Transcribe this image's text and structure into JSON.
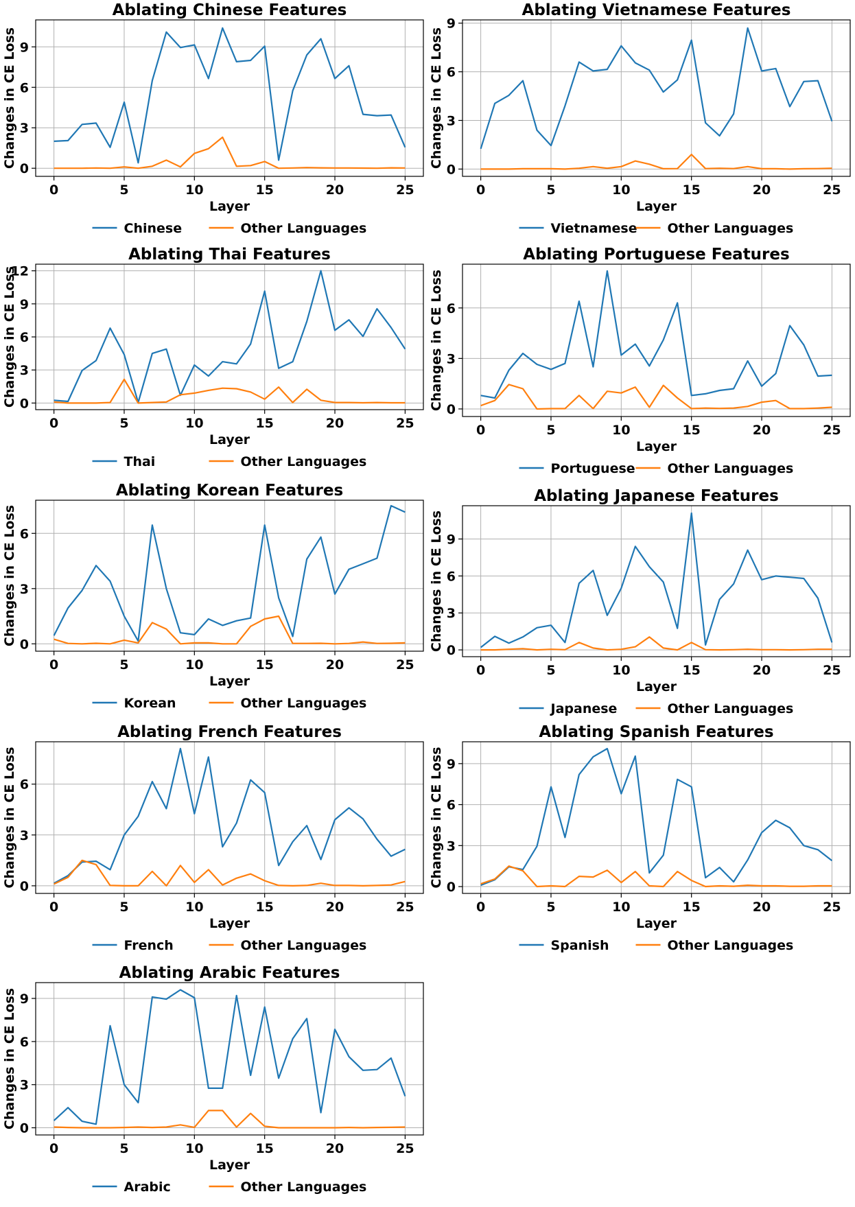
{
  "figure": {
    "common_xlabel": "Layer",
    "common_ylabel": "Changes in CE Loss"
  },
  "colors": {
    "primary": "#1f77b4",
    "other": "#ff7f0e",
    "grid": "#b0b0b0"
  },
  "chart_data": [
    {
      "type": "line",
      "title": "Ablating Chinese Features",
      "xlabel": "Layer",
      "ylabel": "Changes in CE Loss",
      "xlim": [
        -1.3,
        26.3
      ],
      "ylim": [
        -0.6,
        11.0
      ],
      "xticks": [
        0,
        5,
        10,
        15,
        20,
        25
      ],
      "yticks": [
        0,
        3,
        6,
        9
      ],
      "x": [
        0,
        1,
        2,
        3,
        4,
        5,
        6,
        7,
        8,
        9,
        10,
        11,
        12,
        13,
        14,
        15,
        16,
        17,
        18,
        19,
        20,
        21,
        22,
        23,
        24,
        25
      ],
      "series": [
        {
          "name": "Chinese",
          "values": [
            2.0,
            2.05,
            3.25,
            3.35,
            1.55,
            4.9,
            0.4,
            6.5,
            10.1,
            8.95,
            9.15,
            6.65,
            10.4,
            7.9,
            8.0,
            9.05,
            0.6,
            5.75,
            8.4,
            9.6,
            6.65,
            7.6,
            4.0,
            3.9,
            3.95,
            1.55
          ]
        },
        {
          "name": "Other Languages",
          "values": [
            0.0,
            0.0,
            0.0,
            0.02,
            0.0,
            0.1,
            0.0,
            0.15,
            0.6,
            0.1,
            1.1,
            1.45,
            2.3,
            0.15,
            0.2,
            0.5,
            0.0,
            0.02,
            0.05,
            0.03,
            0.02,
            0.02,
            0.01,
            0.0,
            0.03,
            0.02
          ]
        }
      ]
    },
    {
      "type": "line",
      "title": "Ablating Vietnamese Features",
      "xlabel": "Layer",
      "ylabel": "Changes in CE Loss",
      "xlim": [
        -1.3,
        26.3
      ],
      "ylim": [
        -0.45,
        9.2
      ],
      "xticks": [
        0,
        5,
        10,
        15,
        20,
        25
      ],
      "yticks": [
        0,
        3,
        6,
        9
      ],
      "x": [
        0,
        1,
        2,
        3,
        4,
        5,
        6,
        7,
        8,
        9,
        10,
        11,
        12,
        13,
        14,
        15,
        16,
        17,
        18,
        19,
        20,
        21,
        22,
        23,
        24,
        25
      ],
      "series": [
        {
          "name": "Vietnamese",
          "values": [
            1.25,
            4.05,
            4.55,
            5.45,
            2.4,
            1.45,
            3.9,
            6.6,
            6.05,
            6.15,
            7.6,
            6.55,
            6.1,
            4.75,
            5.5,
            7.95,
            2.85,
            2.05,
            3.4,
            8.7,
            6.05,
            6.2,
            3.85,
            5.4,
            5.45,
            2.95
          ]
        },
        {
          "name": "Other Languages",
          "values": [
            0.0,
            0.0,
            0.0,
            0.02,
            0.02,
            0.02,
            0.0,
            0.05,
            0.15,
            0.05,
            0.15,
            0.5,
            0.3,
            0.02,
            0.03,
            0.9,
            0.03,
            0.05,
            0.03,
            0.15,
            0.02,
            0.02,
            0.0,
            0.02,
            0.03,
            0.05
          ]
        }
      ]
    },
    {
      "type": "line",
      "title": "Ablating Thai Features",
      "xlabel": "Layer",
      "ylabel": "Changes in CE Loss",
      "xlim": [
        -1.3,
        26.3
      ],
      "ylim": [
        -0.6,
        12.6
      ],
      "xticks": [
        0,
        5,
        10,
        15,
        20,
        25
      ],
      "yticks": [
        0,
        3,
        6,
        9,
        12
      ],
      "x": [
        0,
        1,
        2,
        3,
        4,
        5,
        6,
        7,
        8,
        9,
        10,
        11,
        12,
        13,
        14,
        15,
        16,
        17,
        18,
        19,
        20,
        21,
        22,
        23,
        24,
        25
      ],
      "series": [
        {
          "name": "Thai",
          "values": [
            0.25,
            0.15,
            2.95,
            3.85,
            6.8,
            4.4,
            0.05,
            4.5,
            4.9,
            0.7,
            3.45,
            2.45,
            3.75,
            3.55,
            5.35,
            10.15,
            3.15,
            3.75,
            7.4,
            12.0,
            6.6,
            7.55,
            6.05,
            8.55,
            6.85,
            4.9
          ]
        },
        {
          "name": "Other Languages",
          "values": [
            0.1,
            0.0,
            0.0,
            0.0,
            0.05,
            2.15,
            0.0,
            0.05,
            0.1,
            0.75,
            0.9,
            1.15,
            1.35,
            1.3,
            1.0,
            0.35,
            1.45,
            0.05,
            1.25,
            0.25,
            0.05,
            0.05,
            0.02,
            0.05,
            0.02,
            0.02
          ]
        }
      ]
    },
    {
      "type": "line",
      "title": "Ablating Portuguese Features",
      "xlabel": "Layer",
      "ylabel": "Changes in CE Loss",
      "xlim": [
        -1.3,
        26.3
      ],
      "ylim": [
        -0.45,
        8.6
      ],
      "xticks": [
        0,
        5,
        10,
        15,
        20,
        25
      ],
      "yticks": [
        0,
        3,
        6
      ],
      "x": [
        0,
        1,
        2,
        3,
        4,
        5,
        6,
        7,
        8,
        9,
        10,
        11,
        12,
        13,
        14,
        15,
        16,
        17,
        18,
        19,
        20,
        21,
        22,
        23,
        24,
        25
      ],
      "series": [
        {
          "name": "Portuguese",
          "values": [
            0.8,
            0.65,
            2.3,
            3.3,
            2.65,
            2.35,
            2.7,
            6.4,
            2.5,
            8.2,
            3.2,
            3.85,
            2.55,
            4.1,
            6.3,
            0.8,
            0.9,
            1.1,
            1.2,
            2.85,
            1.35,
            2.1,
            4.95,
            3.8,
            1.95,
            2.0
          ]
        },
        {
          "name": "Other Languages",
          "values": [
            0.2,
            0.5,
            1.45,
            1.2,
            0.0,
            0.02,
            0.02,
            0.8,
            0.02,
            1.05,
            0.95,
            1.3,
            0.1,
            1.4,
            0.65,
            0.02,
            0.05,
            0.03,
            0.05,
            0.15,
            0.4,
            0.5,
            0.02,
            0.02,
            0.05,
            0.1
          ]
        }
      ]
    },
    {
      "type": "line",
      "title": "Ablating Korean Features",
      "xlabel": "Layer",
      "ylabel": "Changes in CE Loss",
      "xlim": [
        -1.3,
        26.3
      ],
      "ylim": [
        -0.4,
        7.8
      ],
      "xticks": [
        0,
        5,
        10,
        15,
        20,
        25
      ],
      "yticks": [
        0,
        3,
        6
      ],
      "x": [
        0,
        1,
        2,
        3,
        4,
        5,
        6,
        7,
        8,
        9,
        10,
        11,
        12,
        13,
        14,
        15,
        16,
        17,
        18,
        19,
        20,
        21,
        22,
        23,
        24,
        25
      ],
      "series": [
        {
          "name": "Korean",
          "values": [
            0.45,
            1.95,
            2.9,
            4.25,
            3.4,
            1.5,
            0.15,
            6.45,
            3.0,
            0.6,
            0.5,
            1.35,
            1.0,
            1.25,
            1.4,
            6.45,
            2.5,
            0.4,
            4.6,
            5.8,
            2.7,
            4.05,
            4.35,
            4.65,
            7.5,
            7.15
          ]
        },
        {
          "name": "Other Languages",
          "values": [
            0.25,
            0.02,
            0.0,
            0.03,
            0.0,
            0.2,
            0.05,
            1.15,
            0.8,
            0.0,
            0.05,
            0.05,
            0.0,
            0.0,
            0.95,
            1.35,
            1.5,
            0.02,
            0.02,
            0.03,
            0.0,
            0.02,
            0.1,
            0.02,
            0.03,
            0.05
          ]
        }
      ]
    },
    {
      "type": "line",
      "title": "Ablating Japanese Features",
      "xlabel": "Layer",
      "ylabel": "Changes in CE Loss",
      "xlim": [
        -1.3,
        26.3
      ],
      "ylim": [
        -0.55,
        11.7
      ],
      "xticks": [
        0,
        5,
        10,
        15,
        20,
        25
      ],
      "yticks": [
        0,
        3,
        6,
        9
      ],
      "x": [
        0,
        1,
        2,
        3,
        4,
        5,
        6,
        7,
        8,
        9,
        10,
        11,
        12,
        13,
        14,
        15,
        16,
        17,
        18,
        19,
        20,
        21,
        22,
        23,
        24,
        25
      ],
      "series": [
        {
          "name": "Japanese",
          "values": [
            0.2,
            1.1,
            0.55,
            1.05,
            1.8,
            2.0,
            0.6,
            5.4,
            6.45,
            2.8,
            5.0,
            8.4,
            6.75,
            5.5,
            1.75,
            11.1,
            0.4,
            4.1,
            5.35,
            8.1,
            5.7,
            6.0,
            5.9,
            5.8,
            4.2,
            0.6
          ]
        },
        {
          "name": "Other Languages",
          "values": [
            0.0,
            0.0,
            0.05,
            0.1,
            0.0,
            0.05,
            0.02,
            0.6,
            0.15,
            0.0,
            0.05,
            0.25,
            1.05,
            0.15,
            0.0,
            0.6,
            0.02,
            0.0,
            0.02,
            0.05,
            0.02,
            0.02,
            0.0,
            0.02,
            0.05,
            0.05
          ]
        }
      ]
    },
    {
      "type": "line",
      "title": "Ablating French Features",
      "xlabel": "Layer",
      "ylabel": "Changes in CE Loss",
      "xlim": [
        -1.3,
        26.3
      ],
      "ylim": [
        -0.45,
        8.5
      ],
      "xticks": [
        0,
        5,
        10,
        15,
        20,
        25
      ],
      "yticks": [
        0,
        3,
        6
      ],
      "x": [
        0,
        1,
        2,
        3,
        4,
        5,
        6,
        7,
        8,
        9,
        10,
        11,
        12,
        13,
        14,
        15,
        16,
        17,
        18,
        19,
        20,
        21,
        22,
        23,
        24,
        25
      ],
      "series": [
        {
          "name": "French",
          "values": [
            0.15,
            0.6,
            1.4,
            1.45,
            0.95,
            3.0,
            4.1,
            6.15,
            4.55,
            8.1,
            4.25,
            7.6,
            2.3,
            3.7,
            6.25,
            5.5,
            1.2,
            2.6,
            3.55,
            1.55,
            3.9,
            4.6,
            3.95,
            2.75,
            1.75,
            2.15
          ]
        },
        {
          "name": "Other Languages",
          "values": [
            0.1,
            0.5,
            1.5,
            1.25,
            0.02,
            0.0,
            0.0,
            0.85,
            0.0,
            1.2,
            0.2,
            0.95,
            0.05,
            0.45,
            0.7,
            0.3,
            0.02,
            0.0,
            0.02,
            0.15,
            0.02,
            0.02,
            0.0,
            0.02,
            0.05,
            0.25
          ]
        }
      ]
    },
    {
      "type": "line",
      "title": "Ablating Spanish Features",
      "xlabel": "Layer",
      "ylabel": "Changes in CE Loss",
      "xlim": [
        -1.3,
        26.3
      ],
      "ylim": [
        -0.5,
        10.6
      ],
      "xticks": [
        0,
        5,
        10,
        15,
        20,
        25
      ],
      "yticks": [
        0,
        3,
        6,
        9
      ],
      "x": [
        0,
        1,
        2,
        3,
        4,
        5,
        6,
        7,
        8,
        9,
        10,
        11,
        12,
        13,
        14,
        15,
        16,
        17,
        18,
        19,
        20,
        21,
        22,
        23,
        24,
        25
      ],
      "series": [
        {
          "name": "Spanish",
          "values": [
            0.1,
            0.5,
            1.45,
            1.25,
            2.95,
            7.3,
            3.6,
            8.2,
            9.5,
            10.1,
            6.8,
            9.55,
            1.0,
            2.3,
            7.85,
            7.3,
            0.65,
            1.4,
            0.35,
            1.95,
            3.95,
            4.85,
            4.3,
            3.0,
            2.7,
            1.9
          ]
        },
        {
          "name": "Other Languages",
          "values": [
            0.2,
            0.55,
            1.5,
            1.15,
            0.0,
            0.05,
            0.0,
            0.75,
            0.7,
            1.2,
            0.3,
            1.1,
            0.05,
            0.0,
            1.1,
            0.45,
            0.0,
            0.05,
            0.02,
            0.1,
            0.05,
            0.05,
            0.02,
            0.02,
            0.05,
            0.05
          ]
        }
      ]
    },
    {
      "type": "line",
      "title": "Ablating Arabic Features",
      "xlabel": "Layer",
      "ylabel": "Changes in CE Loss",
      "xlim": [
        -1.3,
        26.3
      ],
      "ylim": [
        -0.5,
        10.1
      ],
      "xticks": [
        0,
        5,
        10,
        15,
        20,
        25
      ],
      "yticks": [
        0,
        3,
        6,
        9
      ],
      "x": [
        0,
        1,
        2,
        3,
        4,
        5,
        6,
        7,
        8,
        9,
        10,
        11,
        12,
        13,
        14,
        15,
        16,
        17,
        18,
        19,
        20,
        21,
        22,
        23,
        24,
        25
      ],
      "series": [
        {
          "name": "Arabic",
          "values": [
            0.5,
            1.4,
            0.45,
            0.25,
            7.1,
            3.0,
            1.75,
            9.1,
            8.95,
            9.6,
            9.05,
            2.75,
            2.75,
            9.2,
            3.65,
            8.4,
            3.45,
            6.2,
            7.6,
            1.05,
            6.85,
            4.95,
            4.0,
            4.05,
            4.85,
            2.2
          ]
        },
        {
          "name": "Other Languages",
          "values": [
            0.05,
            0.02,
            0.0,
            0.0,
            0.0,
            0.02,
            0.05,
            0.02,
            0.05,
            0.2,
            0.03,
            1.2,
            1.2,
            0.05,
            1.0,
            0.1,
            0.0,
            0.0,
            0.0,
            0.0,
            0.0,
            0.02,
            0.0,
            0.02,
            0.03,
            0.05
          ]
        }
      ]
    }
  ]
}
